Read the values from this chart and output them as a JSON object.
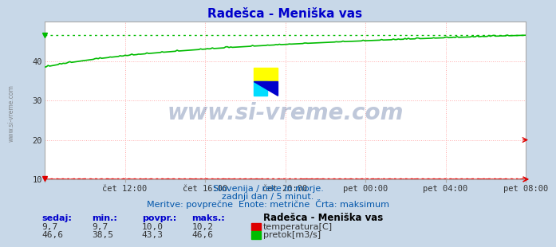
{
  "title": "Radešca - Meniška vas",
  "bg_color": "#c8d8e8",
  "plot_bg_color": "#ffffff",
  "grid_color": "#ffaaaa",
  "grid_dot_color": "#ffcccc",
  "x_labels": [
    "čet 12:00",
    "čet 16:00",
    "čet 20:00",
    "pet 00:00",
    "pet 04:00",
    "pet 08:00"
  ],
  "ylim": [
    10,
    50
  ],
  "yticks": [
    10,
    20,
    30,
    40
  ],
  "temp_color": "#dd0000",
  "flow_color": "#00bb00",
  "watermark_text": "www.si-vreme.com",
  "subtitle1": "Slovenija / reke in morje.",
  "subtitle2": "zadnji dan / 5 minut.",
  "subtitle3": "Meritve: povprečne  Enote: metrične  Črta: maksimum",
  "table_headers": [
    "sedaj:",
    "min.:",
    "povpr.:",
    "maks.:"
  ],
  "temp_row": [
    "9,7",
    "9,7",
    "10,0",
    "10,2"
  ],
  "flow_row": [
    "46,6",
    "38,5",
    "43,3",
    "46,6"
  ],
  "legend_title": "Radešca - Meniška vas",
  "legend_temp": "temperatura[C]",
  "legend_flow": "pretok[m3/s]",
  "flow_max": 46.6,
  "temp_max": 10.2,
  "n_points": 288
}
